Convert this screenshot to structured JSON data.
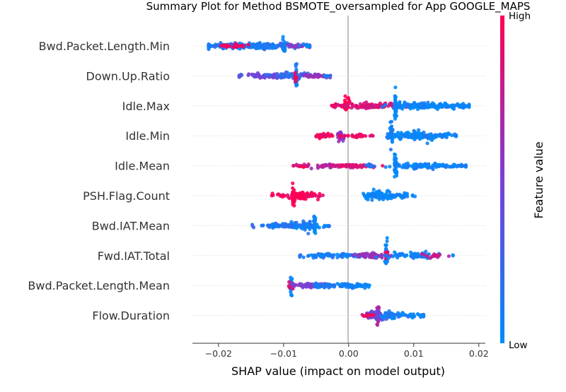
{
  "chart_data": {
    "type": "scatter",
    "subtype": "shap-beeswarm",
    "title": "Summary Plot for Method BSMOTE_oversampled for App GOOGLE_MAPS",
    "xlabel": "SHAP value (impact on model output)",
    "xlim": [
      -0.024,
      0.021
    ],
    "x_ticks": [
      -0.02,
      -0.01,
      0.0,
      0.01,
      0.02
    ],
    "x_tick_labels": [
      "−0.02",
      "−0.01",
      "0.00",
      "0.01",
      "0.02"
    ],
    "zero_line": 0.0,
    "colorbar": {
      "label": "Feature value",
      "high_label": "High",
      "low_label": "Low",
      "high_color": "#ff0052",
      "low_color": "#008bfb"
    },
    "features": [
      {
        "name": "Bwd.Packet.Length.Min",
        "range": [
          -0.0215,
          -0.006
        ],
        "clusters": [
          {
            "x": -0.0215,
            "sd": 0.0003,
            "n": 10,
            "spread": 2,
            "val": 0.1
          },
          {
            "x": -0.0165,
            "sd": 0.0035,
            "n": 170,
            "spread": 4,
            "val": 0.1
          },
          {
            "x": -0.0175,
            "sd": 0.0012,
            "n": 25,
            "spread": 3,
            "val": 0.95
          },
          {
            "x": -0.0095,
            "sd": 0.0025,
            "n": 35,
            "spread": 3,
            "val": 0.55
          },
          {
            "x": -0.01,
            "sd": 0.0001,
            "n": 25,
            "spread": 17,
            "val": 0.02
          },
          {
            "x": -0.0125,
            "sd": 0.0015,
            "n": 40,
            "spread": 4,
            "val": 0.1
          },
          {
            "x": -0.0065,
            "sd": 0.0004,
            "n": 10,
            "spread": 2,
            "val": 0.05
          }
        ]
      },
      {
        "name": "Down.Up.Ratio",
        "range": [
          -0.0168,
          -0.0028
        ],
        "clusters": [
          {
            "x": -0.0168,
            "sd": 0.0002,
            "n": 3,
            "spread": 1,
            "val": 0.1
          },
          {
            "x": -0.0125,
            "sd": 0.0025,
            "n": 80,
            "spread": 3,
            "val": 0.45
          },
          {
            "x": -0.0085,
            "sd": 0.002,
            "n": 70,
            "spread": 5,
            "val": 0.2
          },
          {
            "x": -0.0081,
            "sd": 0.0001,
            "n": 30,
            "spread": 18,
            "val": 0.1
          },
          {
            "x": -0.0081,
            "sd": 0.0001,
            "n": 8,
            "spread": 10,
            "val": 0.95
          },
          {
            "x": -0.005,
            "sd": 0.0012,
            "n": 35,
            "spread": 3,
            "val": 0.6
          },
          {
            "x": -0.0032,
            "sd": 0.0003,
            "n": 5,
            "spread": 1,
            "val": 0.1
          }
        ]
      },
      {
        "name": "Idle.Max",
        "range": [
          -0.003,
          0.0185
        ],
        "clusters": [
          {
            "x": -0.002,
            "sd": 0.0006,
            "n": 15,
            "spread": 2,
            "val": 0.9
          },
          {
            "x": -0.0003,
            "sd": 0.0002,
            "n": 30,
            "spread": 9,
            "val": 1.0
          },
          {
            "x": 0.0035,
            "sd": 0.0025,
            "n": 90,
            "spread": 4,
            "val": 0.85
          },
          {
            "x": 0.0072,
            "sd": 0.0001,
            "n": 35,
            "spread": 18,
            "val": 0.02
          },
          {
            "x": 0.0095,
            "sd": 0.0015,
            "n": 60,
            "spread": 5,
            "val": 0.05
          },
          {
            "x": 0.0135,
            "sd": 0.0025,
            "n": 110,
            "spread": 4,
            "val": 0.05
          },
          {
            "x": 0.0175,
            "sd": 0.0006,
            "n": 20,
            "spread": 2,
            "val": 0.05
          }
        ]
      },
      {
        "name": "Idle.Min",
        "range": [
          -0.005,
          0.0165
        ],
        "clusters": [
          {
            "x": -0.004,
            "sd": 0.0008,
            "n": 30,
            "spread": 3,
            "val": 0.95
          },
          {
            "x": -0.0012,
            "sd": 0.0003,
            "n": 30,
            "spread": 8,
            "val": 0.6
          },
          {
            "x": 0.0015,
            "sd": 0.0012,
            "n": 25,
            "spread": 3,
            "val": 0.95
          },
          {
            "x": 0.0035,
            "sd": 0.0002,
            "n": 3,
            "spread": 1,
            "val": 0.9
          },
          {
            "x": 0.0066,
            "sd": 0.0001,
            "n": 25,
            "spread": 18,
            "val": 0.05
          },
          {
            "x": 0.0105,
            "sd": 0.0012,
            "n": 70,
            "spread": 7,
            "val": 0.03
          },
          {
            "x": 0.008,
            "sd": 0.0015,
            "n": 45,
            "spread": 4,
            "val": 0.05
          },
          {
            "x": 0.0145,
            "sd": 0.0015,
            "n": 40,
            "spread": 3,
            "val": 0.05
          }
        ]
      },
      {
        "name": "Idle.Mean",
        "range": [
          -0.0085,
          0.018
        ],
        "clusters": [
          {
            "x": -0.0075,
            "sd": 0.0008,
            "n": 15,
            "spread": 2,
            "val": 0.95
          },
          {
            "x": -0.0035,
            "sd": 0.0015,
            "n": 40,
            "spread": 3,
            "val": 0.7
          },
          {
            "x": 0.0005,
            "sd": 0.0015,
            "n": 55,
            "spread": 3,
            "val": 0.85
          },
          {
            "x": 0.0032,
            "sd": 0.0004,
            "n": 15,
            "spread": 3,
            "val": 0.15
          },
          {
            "x": 0.0072,
            "sd": 0.0001,
            "n": 35,
            "spread": 18,
            "val": 0.02
          },
          {
            "x": 0.011,
            "sd": 0.002,
            "n": 80,
            "spread": 4,
            "val": 0.05
          },
          {
            "x": 0.016,
            "sd": 0.0015,
            "n": 40,
            "spread": 3,
            "val": 0.05
          }
        ]
      },
      {
        "name": "PSH.Flag.Count",
        "range": [
          -0.0118,
          0.0102
        ],
        "clusters": [
          {
            "x": -0.0085,
            "sd": 0.0001,
            "n": 30,
            "spread": 18,
            "val": 1.0
          },
          {
            "x": -0.0072,
            "sd": 0.001,
            "n": 60,
            "spread": 7,
            "val": 1.0
          },
          {
            "x": -0.0105,
            "sd": 0.0008,
            "n": 15,
            "spread": 3,
            "val": 0.95
          },
          {
            "x": -0.0052,
            "sd": 0.0005,
            "n": 10,
            "spread": 2,
            "val": 0.95
          },
          {
            "x": 0.0048,
            "sd": 0.0012,
            "n": 70,
            "spread": 7,
            "val": 0.0
          },
          {
            "x": 0.0035,
            "sd": 0.0006,
            "n": 15,
            "spread": 3,
            "val": 0.05
          },
          {
            "x": 0.0085,
            "sd": 0.0008,
            "n": 25,
            "spread": 3,
            "val": 0.05
          }
        ]
      },
      {
        "name": "Bwd.IAT.Mean",
        "range": [
          -0.0148,
          -0.003
        ],
        "clusters": [
          {
            "x": -0.0148,
            "sd": 0.0002,
            "n": 3,
            "spread": 2,
            "val": 0.3
          },
          {
            "x": -0.012,
            "sd": 0.0012,
            "n": 30,
            "spread": 3,
            "val": 0.1
          },
          {
            "x": -0.0085,
            "sd": 0.0015,
            "n": 60,
            "spread": 4,
            "val": 0.15
          },
          {
            "x": -0.0052,
            "sd": 0.0001,
            "n": 30,
            "spread": 18,
            "val": 0.02
          },
          {
            "x": -0.0065,
            "sd": 0.0008,
            "n": 40,
            "spread": 7,
            "val": 0.1
          },
          {
            "x": -0.0035,
            "sd": 0.0004,
            "n": 10,
            "spread": 2,
            "val": 0.05
          }
        ]
      },
      {
        "name": "Fwd.IAT.Total",
        "range": [
          -0.0075,
          0.0162
        ],
        "clusters": [
          {
            "x": -0.0075,
            "sd": 0.0002,
            "n": 3,
            "spread": 1,
            "val": 0.1
          },
          {
            "x": -0.002,
            "sd": 0.0025,
            "n": 70,
            "spread": 3,
            "val": 0.1
          },
          {
            "x": 0.0035,
            "sd": 0.0015,
            "n": 60,
            "spread": 4,
            "val": 0.6
          },
          {
            "x": 0.0058,
            "sd": 0.0001,
            "n": 30,
            "spread": 18,
            "val": 0.02
          },
          {
            "x": 0.0058,
            "sd": 0.0001,
            "n": 8,
            "spread": 10,
            "val": 0.9
          },
          {
            "x": 0.0095,
            "sd": 0.0018,
            "n": 70,
            "spread": 5,
            "val": 0.05
          },
          {
            "x": 0.013,
            "sd": 0.001,
            "n": 20,
            "spread": 3,
            "val": 0.75
          },
          {
            "x": 0.0162,
            "sd": 0.0002,
            "n": 2,
            "spread": 1,
            "val": 0.05
          }
        ]
      },
      {
        "name": "Bwd.Packet.Length.Mean",
        "range": [
          -0.0095,
          0.0032
        ],
        "clusters": [
          {
            "x": -0.0088,
            "sd": 0.0001,
            "n": 30,
            "spread": 18,
            "val": 0.03
          },
          {
            "x": -0.0088,
            "sd": 0.0002,
            "n": 12,
            "spread": 6,
            "val": 0.85
          },
          {
            "x": -0.0065,
            "sd": 0.0012,
            "n": 45,
            "spread": 4,
            "val": 0.5
          },
          {
            "x": -0.003,
            "sd": 0.0015,
            "n": 50,
            "spread": 3,
            "val": 0.1
          },
          {
            "x": 0.001,
            "sd": 0.0012,
            "n": 45,
            "spread": 3,
            "val": 0.05
          }
        ]
      },
      {
        "name": "Flow.Duration",
        "range": [
          0.002,
          0.0115
        ],
        "clusters": [
          {
            "x": 0.0045,
            "sd": 0.0001,
            "n": 30,
            "spread": 18,
            "val": 0.7
          },
          {
            "x": 0.004,
            "sd": 0.0008,
            "n": 60,
            "spread": 6,
            "val": 0.4
          },
          {
            "x": 0.0065,
            "sd": 0.0008,
            "n": 40,
            "spread": 5,
            "val": 0.1
          },
          {
            "x": 0.0095,
            "sd": 0.0012,
            "n": 35,
            "spread": 3,
            "val": 0.05
          },
          {
            "x": 0.003,
            "sd": 0.0005,
            "n": 15,
            "spread": 3,
            "val": 0.9
          }
        ]
      }
    ]
  }
}
